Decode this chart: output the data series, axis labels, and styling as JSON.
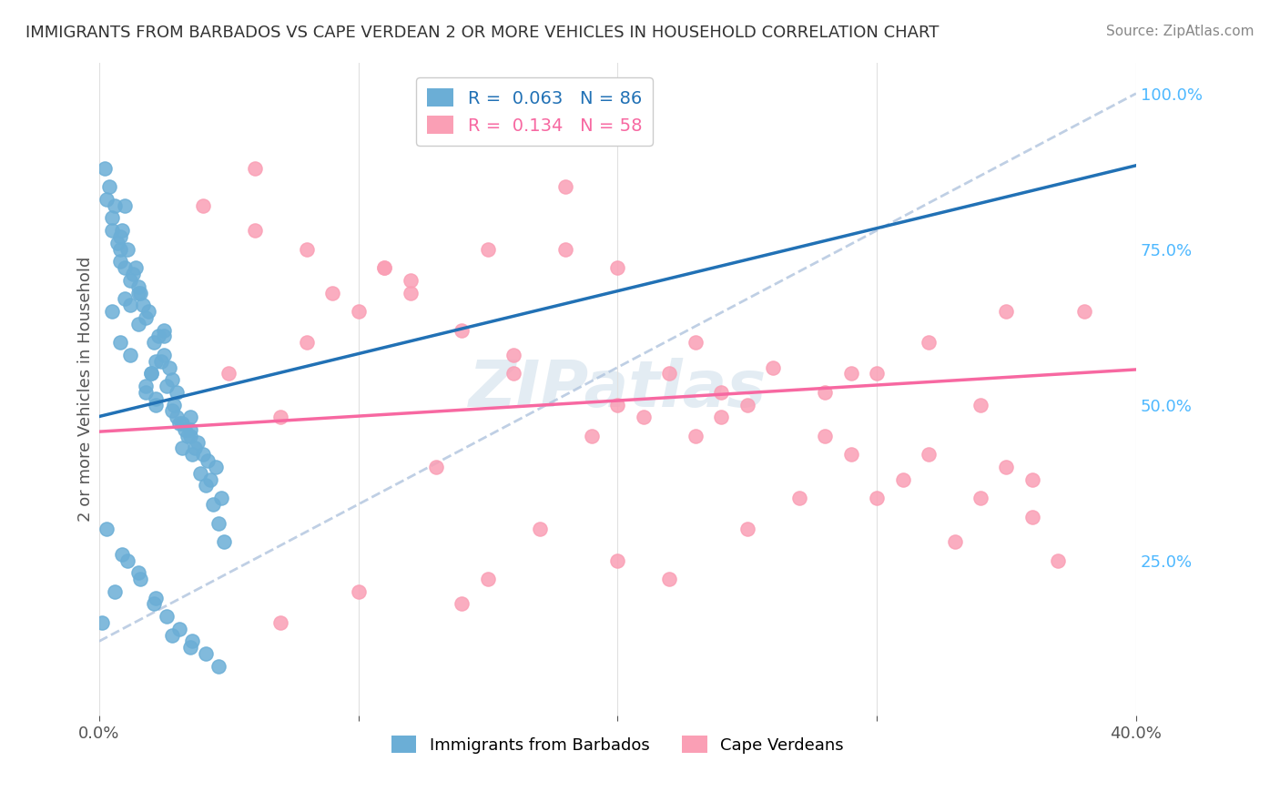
{
  "title": "IMMIGRANTS FROM BARBADOS VS CAPE VERDEAN 2 OR MORE VEHICLES IN HOUSEHOLD CORRELATION CHART",
  "source": "Source: ZipAtlas.com",
  "ylabel": "2 or more Vehicles in Household",
  "xlabel_blue": "Immigrants from Barbados",
  "xlabel_pink": "Cape Verdeans",
  "R_blue": 0.063,
  "N_blue": 86,
  "R_pink": 0.134,
  "N_pink": 58,
  "blue_color": "#6baed6",
  "pink_color": "#fa9fb5",
  "blue_line_color": "#2171b5",
  "pink_line_color": "#f768a1",
  "dashed_line_color": "#b0c4de",
  "xlim": [
    0.0,
    0.4
  ],
  "ylim": [
    0.0,
    1.05
  ],
  "watermark": "ZIPatlas",
  "background_color": "#ffffff",
  "blue_scatter_x": [
    0.02,
    0.01,
    0.005,
    0.008,
    0.012,
    0.018,
    0.022,
    0.03,
    0.035,
    0.04,
    0.015,
    0.025,
    0.01,
    0.008,
    0.005,
    0.012,
    0.02,
    0.03,
    0.035,
    0.025,
    0.015,
    0.01,
    0.008,
    0.018,
    0.022,
    0.028,
    0.032,
    0.038,
    0.042,
    0.005,
    0.008,
    0.015,
    0.025,
    0.035,
    0.045,
    0.012,
    0.018,
    0.022,
    0.028,
    0.032,
    0.002,
    0.004,
    0.006,
    0.009,
    0.011,
    0.014,
    0.016,
    0.019,
    0.021,
    0.024,
    0.026,
    0.029,
    0.031,
    0.034,
    0.036,
    0.039,
    0.041,
    0.044,
    0.046,
    0.048,
    0.003,
    0.007,
    0.013,
    0.017,
    0.023,
    0.027,
    0.033,
    0.037,
    0.043,
    0.047,
    0.001,
    0.006,
    0.011,
    0.016,
    0.021,
    0.026,
    0.031,
    0.036,
    0.041,
    0.046,
    0.003,
    0.009,
    0.015,
    0.022,
    0.028,
    0.035
  ],
  "blue_scatter_y": [
    0.55,
    0.82,
    0.65,
    0.6,
    0.58,
    0.52,
    0.5,
    0.48,
    0.45,
    0.42,
    0.68,
    0.62,
    0.72,
    0.75,
    0.78,
    0.7,
    0.55,
    0.52,
    0.48,
    0.58,
    0.63,
    0.67,
    0.73,
    0.53,
    0.51,
    0.49,
    0.47,
    0.44,
    0.41,
    0.8,
    0.77,
    0.69,
    0.61,
    0.46,
    0.4,
    0.66,
    0.64,
    0.57,
    0.54,
    0.43,
    0.88,
    0.85,
    0.82,
    0.78,
    0.75,
    0.72,
    0.68,
    0.65,
    0.6,
    0.57,
    0.53,
    0.5,
    0.47,
    0.45,
    0.42,
    0.39,
    0.37,
    0.34,
    0.31,
    0.28,
    0.83,
    0.76,
    0.71,
    0.66,
    0.61,
    0.56,
    0.46,
    0.43,
    0.38,
    0.35,
    0.15,
    0.2,
    0.25,
    0.22,
    0.18,
    0.16,
    0.14,
    0.12,
    0.1,
    0.08,
    0.3,
    0.26,
    0.23,
    0.19,
    0.13,
    0.11
  ],
  "pink_scatter_x": [
    0.05,
    0.08,
    0.1,
    0.12,
    0.15,
    0.18,
    0.2,
    0.22,
    0.25,
    0.28,
    0.3,
    0.32,
    0.35,
    0.38,
    0.06,
    0.09,
    0.11,
    0.14,
    0.16,
    0.19,
    0.21,
    0.24,
    0.26,
    0.29,
    0.31,
    0.34,
    0.36,
    0.07,
    0.13,
    0.17,
    0.23,
    0.27,
    0.33,
    0.37,
    0.04,
    0.08,
    0.12,
    0.16,
    0.2,
    0.24,
    0.28,
    0.32,
    0.36,
    0.1,
    0.15,
    0.2,
    0.25,
    0.3,
    0.35,
    0.06,
    0.11,
    0.18,
    0.23,
    0.29,
    0.34,
    0.07,
    0.14,
    0.22
  ],
  "pink_scatter_y": [
    0.55,
    0.6,
    0.65,
    0.7,
    0.75,
    0.75,
    0.72,
    0.55,
    0.5,
    0.52,
    0.55,
    0.6,
    0.65,
    0.65,
    0.78,
    0.68,
    0.72,
    0.62,
    0.58,
    0.45,
    0.48,
    0.52,
    0.56,
    0.42,
    0.38,
    0.35,
    0.32,
    0.48,
    0.4,
    0.3,
    0.45,
    0.35,
    0.28,
    0.25,
    0.82,
    0.75,
    0.68,
    0.55,
    0.5,
    0.48,
    0.45,
    0.42,
    0.38,
    0.2,
    0.22,
    0.25,
    0.3,
    0.35,
    0.4,
    0.88,
    0.72,
    0.85,
    0.6,
    0.55,
    0.5,
    0.15,
    0.18,
    0.22
  ]
}
